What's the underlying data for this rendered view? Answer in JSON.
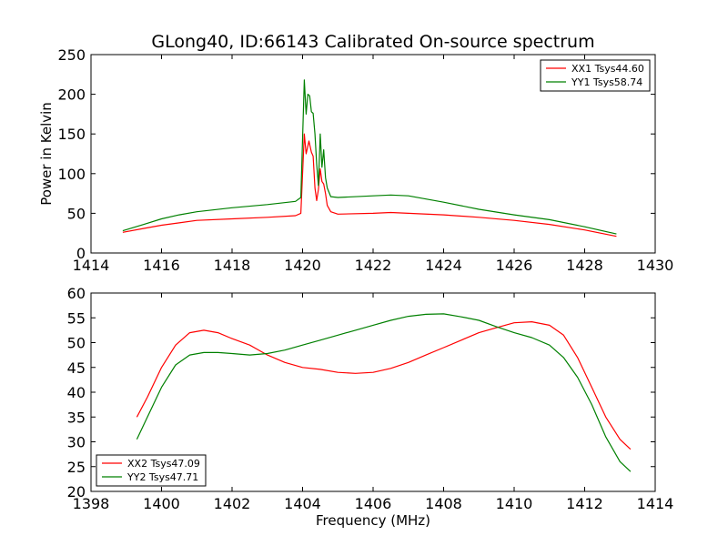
{
  "figure": {
    "title": "GLong40, ID:66143 Calibrated On-source spectrum"
  },
  "chart_data": [
    {
      "type": "line",
      "title": "GLong40, ID:66143 Calibrated On-source spectrum",
      "xlabel": "",
      "ylabel": "Power in Kelvin",
      "xlim": [
        1414,
        1430
      ],
      "ylim": [
        0,
        250
      ],
      "xticks": [
        1414,
        1416,
        1418,
        1420,
        1422,
        1424,
        1426,
        1428,
        1430
      ],
      "yticks": [
        0,
        50,
        100,
        150,
        200,
        250
      ],
      "grid": false,
      "legend_position": "top-right",
      "series": [
        {
          "name": "XX1 Tsys44.60",
          "color": "#ff0000",
          "x": [
            1414.9,
            1415.5,
            1416.0,
            1416.5,
            1417.0,
            1418.0,
            1419.0,
            1419.8,
            1419.95,
            1420.05,
            1420.1,
            1420.18,
            1420.25,
            1420.3,
            1420.35,
            1420.4,
            1420.45,
            1420.5,
            1420.55,
            1420.6,
            1420.65,
            1420.7,
            1420.8,
            1421.0,
            1422.0,
            1422.5,
            1423.0,
            1424.0,
            1425.0,
            1426.0,
            1427.0,
            1428.0,
            1428.9
          ],
          "y": [
            26,
            31,
            35,
            38,
            41,
            43,
            45,
            47,
            50,
            150,
            125,
            141,
            127,
            122,
            82,
            66,
            80,
            106,
            90,
            87,
            75,
            60,
            52,
            49,
            50,
            51,
            50,
            48,
            45,
            41,
            36,
            29,
            21
          ]
        },
        {
          "name": "YY1 Tsys58.74",
          "color": "#008000",
          "x": [
            1414.9,
            1415.5,
            1416.0,
            1416.5,
            1417.0,
            1418.0,
            1419.0,
            1419.8,
            1419.95,
            1420.05,
            1420.1,
            1420.15,
            1420.2,
            1420.25,
            1420.3,
            1420.35,
            1420.4,
            1420.45,
            1420.5,
            1420.55,
            1420.6,
            1420.65,
            1420.7,
            1420.8,
            1421.0,
            1422.0,
            1422.5,
            1423.0,
            1424.0,
            1425.0,
            1426.0,
            1427.0,
            1428.0,
            1428.9
          ],
          "y": [
            28,
            36,
            43,
            48,
            52,
            57,
            61,
            65,
            70,
            218,
            175,
            200,
            198,
            178,
            176,
            150,
            112,
            85,
            150,
            108,
            130,
            95,
            82,
            71,
            70,
            72,
            73,
            72,
            64,
            55,
            48,
            42,
            33,
            24
          ]
        }
      ]
    },
    {
      "type": "line",
      "title": "",
      "xlabel": "Frequency (MHz)",
      "ylabel": "",
      "xlim": [
        1398,
        1414
      ],
      "ylim": [
        20,
        60
      ],
      "xticks": [
        1398,
        1400,
        1402,
        1404,
        1406,
        1408,
        1410,
        1412,
        1414
      ],
      "yticks": [
        20,
        25,
        30,
        35,
        40,
        45,
        50,
        55,
        60
      ],
      "grid": false,
      "legend_position": "bottom-left",
      "series": [
        {
          "name": "XX2 Tsys47.09",
          "color": "#ff0000",
          "x": [
            1399.3,
            1399.6,
            1400.0,
            1400.4,
            1400.8,
            1401.2,
            1401.6,
            1402.0,
            1402.5,
            1403.0,
            1403.5,
            1404.0,
            1404.5,
            1405.0,
            1405.5,
            1406.0,
            1406.5,
            1407.0,
            1407.5,
            1408.0,
            1408.5,
            1409.0,
            1409.5,
            1410.0,
            1410.5,
            1411.0,
            1411.4,
            1411.8,
            1412.2,
            1412.6,
            1413.0,
            1413.3
          ],
          "y": [
            35,
            39,
            45,
            49.5,
            52,
            52.5,
            52,
            50.8,
            49.5,
            47.5,
            46,
            45,
            44.6,
            44,
            43.8,
            44,
            44.8,
            46,
            47.5,
            49,
            50.5,
            52,
            53,
            54,
            54.2,
            53.5,
            51.5,
            47,
            41,
            35,
            30.5,
            28.5
          ]
        },
        {
          "name": "YY2 Tsys47.71",
          "color": "#008000",
          "x": [
            1399.3,
            1399.6,
            1400.0,
            1400.4,
            1400.8,
            1401.2,
            1401.6,
            1402.0,
            1402.5,
            1403.0,
            1403.5,
            1404.0,
            1404.5,
            1405.0,
            1405.5,
            1406.0,
            1406.5,
            1407.0,
            1407.5,
            1408.0,
            1408.5,
            1409.0,
            1409.5,
            1410.0,
            1410.5,
            1411.0,
            1411.4,
            1411.8,
            1412.2,
            1412.6,
            1413.0,
            1413.3
          ],
          "y": [
            30.5,
            35,
            41,
            45.5,
            47.5,
            48,
            48,
            47.8,
            47.5,
            47.8,
            48.5,
            49.5,
            50.5,
            51.5,
            52.5,
            53.5,
            54.5,
            55.3,
            55.7,
            55.8,
            55.2,
            54.5,
            53.2,
            52,
            51,
            49.5,
            47,
            43,
            37.5,
            31,
            26,
            24
          ]
        }
      ]
    }
  ]
}
